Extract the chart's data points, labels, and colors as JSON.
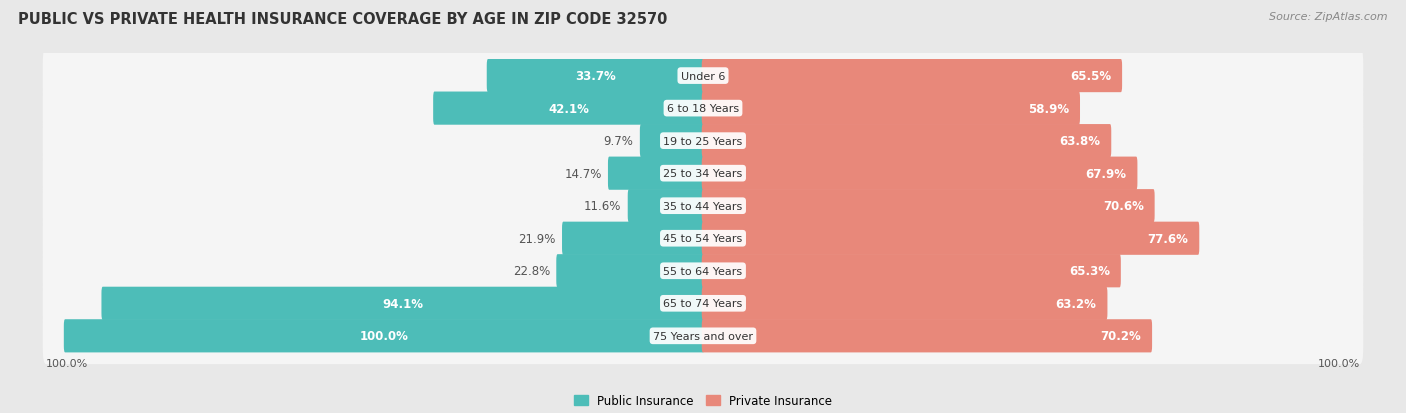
{
  "title": "PUBLIC VS PRIVATE HEALTH INSURANCE COVERAGE BY AGE IN ZIP CODE 32570",
  "source": "Source: ZipAtlas.com",
  "categories": [
    "Under 6",
    "6 to 18 Years",
    "19 to 25 Years",
    "25 to 34 Years",
    "35 to 44 Years",
    "45 to 54 Years",
    "55 to 64 Years",
    "65 to 74 Years",
    "75 Years and over"
  ],
  "public_values": [
    33.7,
    42.1,
    9.7,
    14.7,
    11.6,
    21.9,
    22.8,
    94.1,
    100.0
  ],
  "private_values": [
    65.5,
    58.9,
    63.8,
    67.9,
    70.6,
    77.6,
    65.3,
    63.2,
    70.2
  ],
  "public_color": "#4dbdb8",
  "private_color": "#e8887a",
  "background_color": "#e8e8e8",
  "bar_background": "#f5f5f5",
  "bar_height": 0.62,
  "max_value": 100.0,
  "title_fontsize": 10.5,
  "label_fontsize": 8.5,
  "cat_fontsize": 8.0,
  "legend_fontsize": 8.5,
  "source_fontsize": 8,
  "axis_label_fontsize": 8
}
